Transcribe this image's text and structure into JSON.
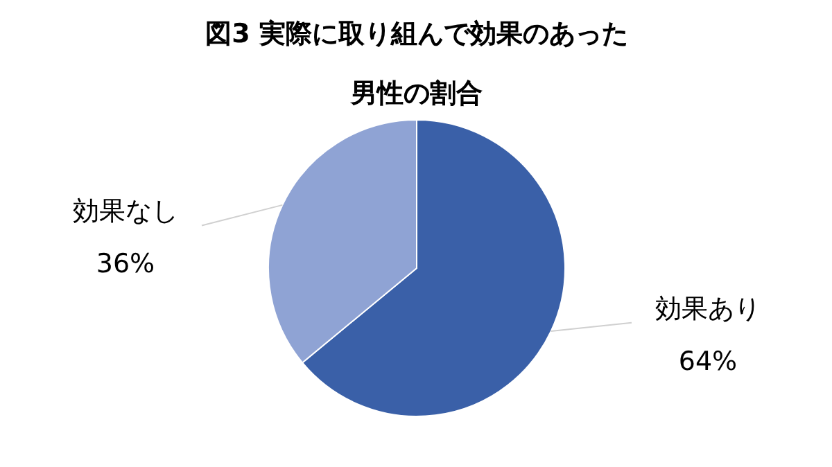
{
  "chart_data": {
    "type": "pie",
    "title": "図3 実際に取り組んで効果のあった男性の割合",
    "categories": [
      "効果あり",
      "効果なし"
    ],
    "values": [
      64,
      36
    ],
    "value_labels": [
      "64%",
      "36%"
    ],
    "colors": [
      "#3a60a8",
      "#8fa3d4"
    ]
  }
}
